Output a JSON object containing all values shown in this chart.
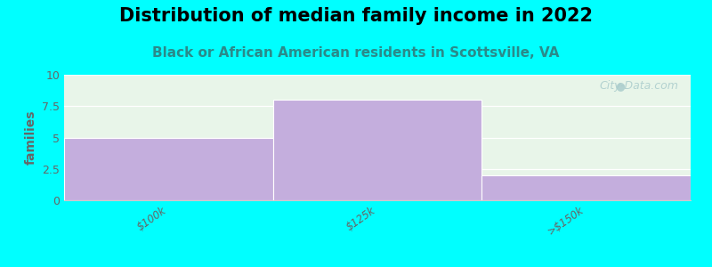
{
  "title": "Distribution of median family income in 2022",
  "subtitle": "Black or African American residents in Scottsville, VA",
  "categories": [
    "$100k",
    "$125k",
    ">$150k"
  ],
  "values": [
    5,
    8,
    2
  ],
  "bar_color": "#c4aedd",
  "background_color": "#00ffff",
  "plot_bg_top": "#e8f5e9",
  "plot_bg_bottom": "#f8fbf8",
  "ylabel": "families",
  "ylim": [
    0,
    10
  ],
  "yticks": [
    0,
    2.5,
    5,
    7.5,
    10
  ],
  "title_fontsize": 15,
  "subtitle_fontsize": 11,
  "watermark": "City-Data.com",
  "watermark_color": "#aacccc",
  "subtitle_color": "#2a8a8a",
  "tick_color": "#666666"
}
